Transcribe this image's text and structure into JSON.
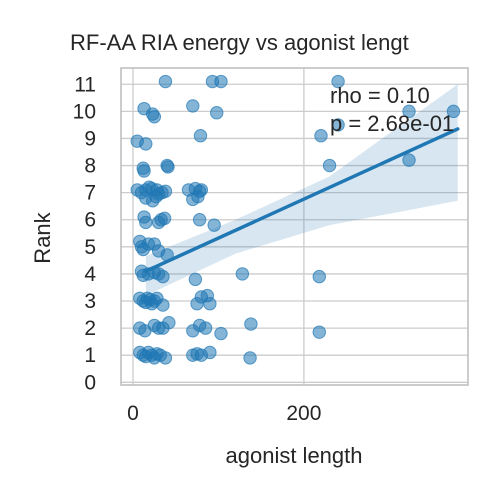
{
  "chart_data": {
    "type": "scatter",
    "title": "RF-AA RIA energy vs agonist lengt",
    "xlabel": "agonist length",
    "ylabel": "Rank",
    "xlim": [
      -14,
      392
    ],
    "ylim": [
      -0.1,
      11.6
    ],
    "xticks": [
      0,
      200
    ],
    "yticks": [
      0,
      1,
      2,
      3,
      4,
      5,
      6,
      7,
      8,
      9,
      10,
      11
    ],
    "grid": true,
    "colors": {
      "point": "#1f77b4",
      "line": "#1f77b4",
      "band": "#1f77b4",
      "grid": "#cccccc",
      "axis": "#c0c0c0"
    },
    "annotations": [
      "rho = 0.10",
      "p = 2.68e-01"
    ],
    "regression": {
      "x": [
        15,
        380
      ],
      "y": [
        4.1,
        9.35
      ],
      "ci_upper_at_end": 11.0,
      "ci_lower_at_end": 6.7
    },
    "points": [
      [
        38,
        11.1
      ],
      [
        93,
        11.1
      ],
      [
        103,
        11.1
      ],
      [
        240,
        11.1
      ],
      [
        13,
        10.1
      ],
      [
        23,
        9.9
      ],
      [
        25,
        9.8
      ],
      [
        70,
        10.2
      ],
      [
        98,
        9.95
      ],
      [
        323,
        10.0
      ],
      [
        375,
        10.0
      ],
      [
        5,
        8.9
      ],
      [
        15,
        8.8
      ],
      [
        79,
        9.1
      ],
      [
        220,
        9.1
      ],
      [
        240,
        9.5
      ],
      [
        12,
        7.9
      ],
      [
        13,
        7.8
      ],
      [
        40,
        8.0
      ],
      [
        41,
        7.95
      ],
      [
        230,
        8.0
      ],
      [
        323,
        8.2
      ],
      [
        5,
        7.1
      ],
      [
        10,
        7.0
      ],
      [
        15,
        7.1
      ],
      [
        19,
        7.2
      ],
      [
        22,
        7.15
      ],
      [
        28,
        7.1
      ],
      [
        30,
        6.95
      ],
      [
        34,
        7.0
      ],
      [
        38,
        7.05
      ],
      [
        15,
        6.8
      ],
      [
        23,
        6.7
      ],
      [
        27,
        6.85
      ],
      [
        65,
        7.1
      ],
      [
        73,
        7.15
      ],
      [
        78,
        7.05
      ],
      [
        80,
        7.1
      ],
      [
        70,
        6.75
      ],
      [
        76,
        6.85
      ],
      [
        13,
        6.1
      ],
      [
        15,
        5.9
      ],
      [
        30,
        5.9
      ],
      [
        33,
        6.0
      ],
      [
        37,
        6.05
      ],
      [
        78,
        6.0
      ],
      [
        95,
        5.8
      ],
      [
        8,
        5.2
      ],
      [
        10,
        5.0
      ],
      [
        12,
        4.9
      ],
      [
        18,
        5.1
      ],
      [
        25,
        5.1
      ],
      [
        30,
        4.85
      ],
      [
        40,
        4.7
      ],
      [
        10,
        4.1
      ],
      [
        12,
        3.95
      ],
      [
        18,
        4.0
      ],
      [
        25,
        4.05
      ],
      [
        30,
        4.0
      ],
      [
        35,
        3.9
      ],
      [
        73,
        3.8
      ],
      [
        128,
        4.0
      ],
      [
        218,
        3.9
      ],
      [
        8,
        3.1
      ],
      [
        12,
        3.0
      ],
      [
        15,
        2.95
      ],
      [
        17,
        3.1
      ],
      [
        20,
        3.05
      ],
      [
        22,
        2.9
      ],
      [
        25,
        3.0
      ],
      [
        28,
        3.1
      ],
      [
        35,
        2.85
      ],
      [
        75,
        2.9
      ],
      [
        80,
        3.15
      ],
      [
        87,
        3.2
      ],
      [
        90,
        2.9
      ],
      [
        8,
        2.0
      ],
      [
        14,
        1.9
      ],
      [
        25,
        2.1
      ],
      [
        30,
        2.0
      ],
      [
        35,
        2.0
      ],
      [
        42,
        2.2
      ],
      [
        70,
        1.9
      ],
      [
        78,
        2.1
      ],
      [
        85,
        2.0
      ],
      [
        103,
        1.8
      ],
      [
        138,
        2.15
      ],
      [
        218,
        1.85
      ],
      [
        8,
        1.1
      ],
      [
        12,
        1.0
      ],
      [
        15,
        0.95
      ],
      [
        18,
        1.1
      ],
      [
        22,
        1.0
      ],
      [
        25,
        0.9
      ],
      [
        28,
        1.05
      ],
      [
        32,
        1.0
      ],
      [
        38,
        0.9
      ],
      [
        70,
        1.0
      ],
      [
        75,
        1.05
      ],
      [
        80,
        1.0
      ],
      [
        90,
        1.1
      ],
      [
        137,
        0.9
      ]
    ]
  }
}
